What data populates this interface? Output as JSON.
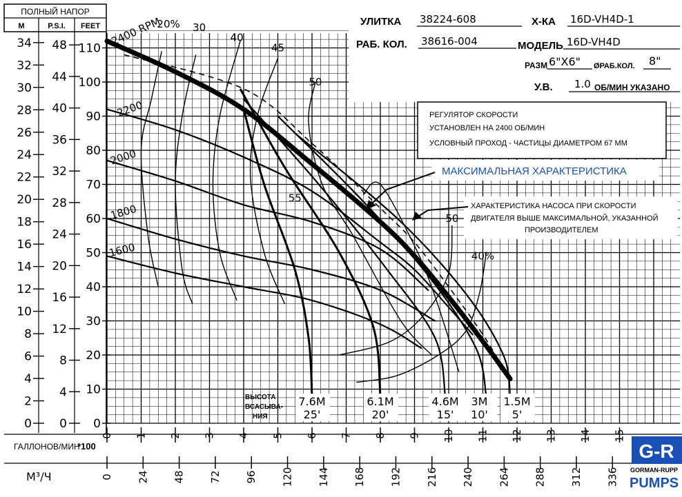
{
  "chart_data": {
    "type": "line",
    "axes": {
      "head_title": "ПОЛНЫЙ НАПОР",
      "head_units": [
        "M",
        "P.S.I.",
        "FEET"
      ],
      "feet_ticks": [
        0,
        10,
        20,
        30,
        40,
        50,
        60,
        70,
        80,
        90,
        100,
        110
      ],
      "psi_ticks": [
        0,
        4,
        8,
        12,
        16,
        20,
        24,
        28,
        32,
        36,
        40,
        44,
        48
      ],
      "m_ticks": [
        0,
        2,
        4,
        6,
        8,
        10,
        12,
        14,
        16,
        18,
        20,
        22,
        24,
        26,
        28,
        30,
        32,
        34
      ],
      "flow_label": "ГАЛЛОНОВ/МИН",
      "flow_multiplier": "*100",
      "flow_ticks": [
        "0",
        "1",
        "2",
        "3",
        "4",
        "5",
        "6",
        "7",
        "8",
        "9",
        "10",
        "11",
        "12",
        "13",
        "14",
        "15"
      ],
      "m3h_label": "М³/Ч",
      "m3h_ticks": [
        "0",
        "24",
        "48",
        "72",
        "96",
        "120",
        "144",
        "168",
        "192",
        "216",
        "240",
        "264",
        "288",
        "312",
        "336"
      ],
      "xlim": [
        0,
        15
      ],
      "ylim": [
        0,
        115
      ]
    },
    "speed_curves": [
      {
        "name": "2400 RPM",
        "x": [
          0,
          2,
          4,
          6,
          8,
          9,
          10,
          11,
          11.8
        ],
        "y": [
          112,
          103,
          92,
          76,
          59,
          49,
          37,
          24,
          13
        ]
      },
      {
        "name": "2200",
        "x": [
          0,
          2,
          4,
          6,
          8,
          9,
          10,
          10.7
        ],
        "y": [
          92,
          86,
          78,
          68,
          53,
          45,
          34,
          26
        ]
      },
      {
        "name": "2000",
        "x": [
          0,
          2,
          4,
          6,
          8,
          9.4
        ],
        "y": [
          77,
          71,
          64,
          59,
          51,
          39
        ]
      },
      {
        "name": "1800",
        "x": [
          0,
          2,
          4,
          6,
          8,
          9.6
        ],
        "y": [
          60,
          54,
          49,
          45,
          39,
          30
        ]
      },
      {
        "name": "1600",
        "x": [
          0,
          2,
          4,
          6,
          8,
          9.2
        ],
        "y": [
          49,
          44,
          40,
          36,
          29,
          22
        ]
      }
    ],
    "efficiency_labels": [
      "20%",
      "30",
      "40",
      "45",
      "50",
      "55",
      "50",
      "40%"
    ],
    "suction_lift_label": "ВЫСОТА ВСАСЫВА-НИЯ",
    "suction_lift_labels": [
      {
        "m": "7.6M",
        "ft": "25'"
      },
      {
        "m": "6.1M",
        "ft": "20'"
      },
      {
        "m": "4.6M",
        "ft": "15'"
      },
      {
        "m": "3M",
        "ft": "10'"
      },
      {
        "m": "1.5M",
        "ft": "5'"
      }
    ]
  },
  "specs": {
    "volute_label": "УЛИТКА",
    "volute_value": "38224-608",
    "curve_label": "Х-КА",
    "curve_value": "16D-VH4D-1",
    "impeller_label": "РАБ. КОЛ.",
    "impeller_value": "38616-004",
    "model_label": "МОДЕЛЬ",
    "model_value": "16D-VH4D",
    "size_label": "РАЗМ",
    "size_value": "6\"X6\"",
    "impeller_dia_label": "ØРАБ.КОЛ.",
    "impeller_dia_value": "8\"",
    "sg_label": "У.В.",
    "sg_value": "1.0",
    "sg_suffix": "ОБ/МИН УКАЗАНО"
  },
  "notes": {
    "line1": "РЕГУЛЯТОР СКОРОСТИ",
    "line2": "УСТАНОВЛЕН НА 2400 ОБ/МИН",
    "line3": "УСЛОВНЫЙ ПРОХОД - ЧАСТИЦЫ ДИАМЕТРОМ 67 ММ",
    "max_curve": "МАКСИМАЛЬНАЯ ХАРАКТЕРИСТИКА",
    "above_max_1": "ХАРАКТЕРИСТИКА НАСОСА ПРИ СКОРОСТИ",
    "above_max_2": "ДВИГАТЕЛЯ ВЫШЕ МАКСИМАЛЬНОЙ, УКАЗАННОЙ",
    "above_max_3": "ПРОИЗВОДИТЕЛЕМ"
  },
  "logo": {
    "mark": "G-R",
    "company": "GORMAN-RUPP",
    "word": "PUMPS"
  }
}
